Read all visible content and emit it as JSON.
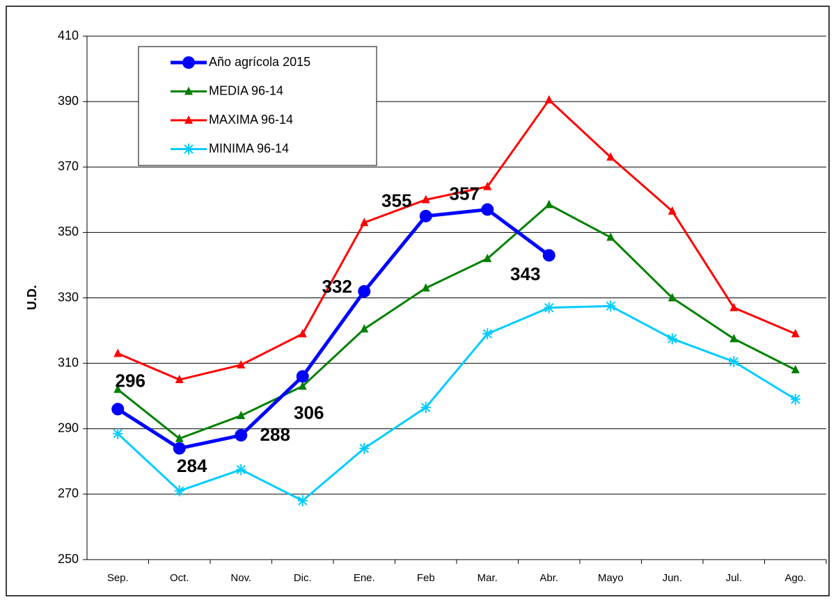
{
  "chart_data": {
    "type": "line",
    "y_label": "U.D.",
    "categories": [
      "Sep.",
      "Oct.",
      "Nov.",
      "Dic.",
      "Ene.",
      "Feb",
      "Mar.",
      "Abr.",
      "Mayo",
      "Jun.",
      "Jul.",
      "Ago."
    ],
    "series": [
      {
        "name": "Año agrícola 2015",
        "color": "#0000ff",
        "marker": "circle",
        "values": [
          296,
          284,
          288,
          306,
          332,
          355,
          357,
          343,
          null,
          null,
          null,
          null
        ]
      },
      {
        "name": "MEDIA 96-14",
        "color": "#008000",
        "marker": "triangle",
        "values": [
          302,
          287,
          294,
          303,
          320.5,
          333,
          342,
          358.5,
          348.5,
          330,
          317.5,
          308
        ]
      },
      {
        "name": "MAXIMA 96-14",
        "color": "#ff0000",
        "marker": "triangle",
        "values": [
          313,
          305,
          309.5,
          319,
          353,
          360,
          364,
          390.5,
          373,
          356.5,
          327,
          319
        ]
      },
      {
        "name": "MINIMA 96-14",
        "color": "#00ccff",
        "marker": "asterisk",
        "values": [
          288.5,
          271,
          277.5,
          268,
          284,
          296.5,
          319,
          327,
          327.5,
          317.5,
          310.5,
          299
        ]
      }
    ],
    "ylim": [
      250,
      410
    ],
    "yticks": [
      250,
      270,
      290,
      310,
      330,
      350,
      370,
      390,
      410
    ],
    "grid": true,
    "labeled_series": 0
  }
}
